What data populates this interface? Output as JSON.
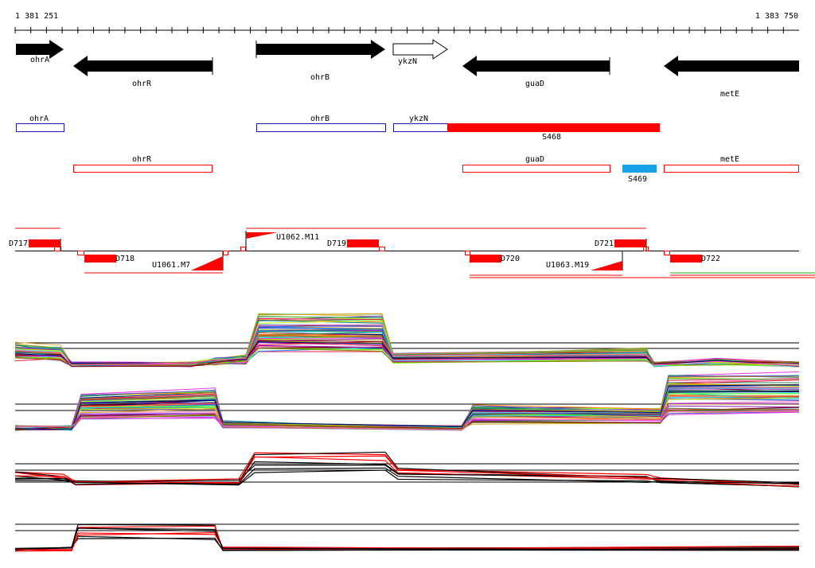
{
  "ruler": {
    "start_label": "1 381 251",
    "end_label": "1 383 750"
  },
  "genes": [
    {
      "label": "ohrA",
      "strand": "+",
      "filled": true
    },
    {
      "label": "ohrR",
      "strand": "-",
      "filled": true
    },
    {
      "label": "ohrB",
      "strand": "+",
      "filled": true
    },
    {
      "label": "ykzN",
      "strand": "+",
      "filled": false
    },
    {
      "label": "guaD",
      "strand": "-",
      "filled": true
    },
    {
      "label": "metE",
      "strand": "-",
      "filled": true
    }
  ],
  "transcript_boxes": [
    {
      "label": "ohrA",
      "color": "#1a1aa6",
      "filled": false
    },
    {
      "label": "ohrB",
      "color": "#1a1aa6",
      "filled": false
    },
    {
      "label": "ykzN",
      "color": "#1a1aa6",
      "filled": false
    },
    {
      "label": "S468",
      "color": "#ff0000",
      "filled": true
    },
    {
      "label": "ohrR",
      "color": "#ff0000",
      "filled": false
    },
    {
      "label": "guaD",
      "color": "#ff0000",
      "filled": false
    },
    {
      "label": "S469",
      "color": "#1aa0e6",
      "filled": true
    },
    {
      "label": "metE",
      "color": "#ff0000",
      "filled": false
    }
  ],
  "segments": [
    {
      "label": "D717"
    },
    {
      "label": "D718"
    },
    {
      "label": "U1061.M7"
    },
    {
      "label": "U1062.M11"
    },
    {
      "label": "D719"
    },
    {
      "label": "D720"
    },
    {
      "label": "U1063.M19"
    },
    {
      "label": "D721"
    },
    {
      "label": "D722"
    }
  ],
  "colors": {
    "feature_red": "#ff0000",
    "gene_black": "#000000",
    "sense_blue": "#1a1aa6",
    "small_rna": "#1aa0e6"
  }
}
